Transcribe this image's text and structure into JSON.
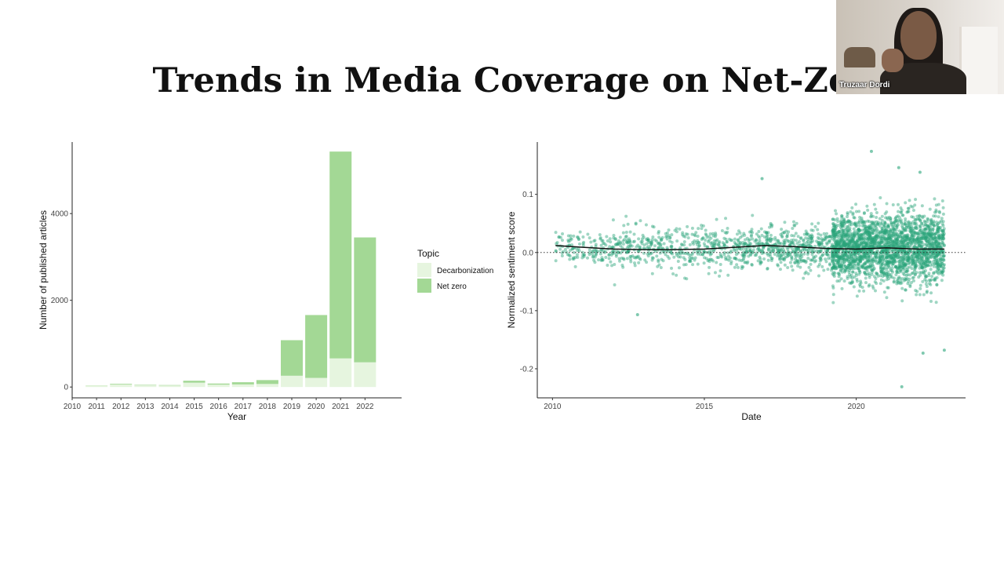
{
  "slide": {
    "title": "Trends in Media Coverage on Net-Zero",
    "participant_name": "Truzaar Dordi"
  },
  "colors": {
    "decarbonization": "#e6f5df",
    "net_zero": "#a3d895",
    "scatter_point": "#2aa57a",
    "trend_line": "#111111"
  },
  "chart_data": [
    {
      "type": "bar",
      "stacked": true,
      "xlabel": "Year",
      "ylabel": "Number of published articles",
      "x_tick_labels": [
        "2010",
        "2011",
        "2012",
        "2013",
        "2014",
        "2015",
        "2016",
        "2017",
        "2018",
        "2019",
        "2020",
        "2021",
        "2022"
      ],
      "categories": [
        "2011",
        "2012",
        "2013",
        "2014",
        "2015",
        "2016",
        "2017",
        "2018",
        "2019",
        "2020",
        "2021",
        "2022"
      ],
      "series": [
        {
          "name": "Decarbonization",
          "values": [
            30,
            60,
            40,
            35,
            100,
            55,
            60,
            70,
            260,
            210,
            660,
            570
          ]
        },
        {
          "name": "Net zero",
          "values": [
            5,
            15,
            10,
            10,
            45,
            25,
            50,
            90,
            820,
            1450,
            4770,
            2880
          ]
        }
      ],
      "ylim": [
        -250,
        5650
      ],
      "y_ticks": [
        0,
        2000,
        4000
      ],
      "y_tick_labels": [
        "0",
        "2000",
        "4000"
      ],
      "grid": false,
      "legend": {
        "title": "Topic",
        "placement": "right",
        "entries": [
          "Decarbonization",
          "Net zero"
        ]
      }
    },
    {
      "type": "scatter",
      "xlabel": "Date",
      "ylabel": "Normalized sentiment score",
      "xlim": [
        2009.5,
        2023.6
      ],
      "ylim": [
        -0.25,
        0.19
      ],
      "x_ticks": [
        2010,
        2015,
        2020
      ],
      "x_tick_labels": [
        "2010",
        "2015",
        "2020"
      ],
      "y_ticks": [
        -0.2,
        -0.1,
        0.0,
        0.1
      ],
      "y_tick_labels": [
        "-0.2",
        "-0.1",
        "0.0",
        "0.1"
      ],
      "reference_line_y": 0.0,
      "grid": false,
      "trend": {
        "x": [
          2010.1,
          2011,
          2012,
          2013,
          2014,
          2015,
          2016,
          2017,
          2018,
          2019,
          2020,
          2021,
          2022,
          2022.9
        ],
        "y": [
          0.012,
          0.009,
          0.006,
          0.005,
          0.005,
          0.006,
          0.009,
          0.012,
          0.01,
          0.007,
          0.006,
          0.008,
          0.006,
          0.006
        ]
      },
      "notable_points": [
        {
          "x": 2012.8,
          "y": -0.107
        },
        {
          "x": 2016.9,
          "y": 0.127
        },
        {
          "x": 2020.5,
          "y": 0.174
        },
        {
          "x": 2021.4,
          "y": 0.146
        },
        {
          "x": 2022.1,
          "y": 0.138
        },
        {
          "x": 2021.5,
          "y": -0.231
        },
        {
          "x": 2022.2,
          "y": -0.173
        },
        {
          "x": 2022.9,
          "y": -0.168
        }
      ]
    }
  ]
}
